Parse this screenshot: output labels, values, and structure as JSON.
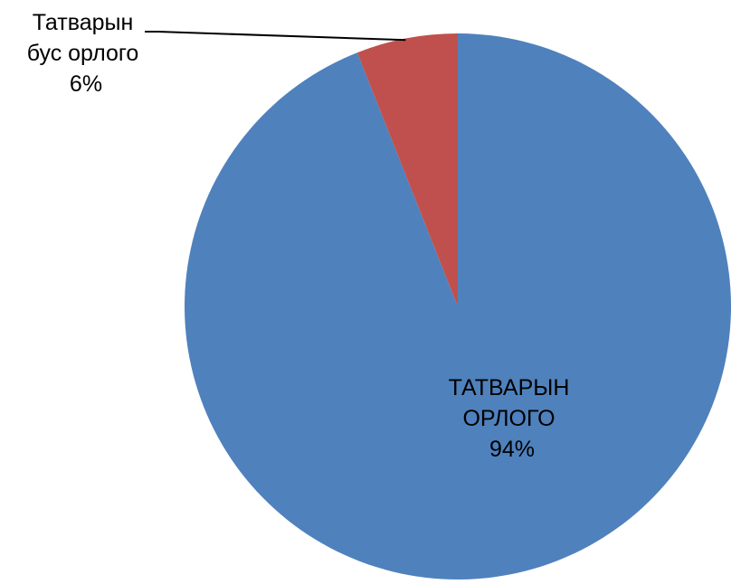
{
  "chart_data": {
    "type": "pie",
    "start_angle_deg": 0,
    "direction": "clockwise",
    "slices": [
      {
        "label_lines": [
          "ТАТВАРЫН",
          "ОРЛОГО"
        ],
        "value": 94,
        "value_label": "94%",
        "color": "#4F81BD",
        "label_position": "inside"
      },
      {
        "label_lines": [
          "Татварын",
          "бус орлого"
        ],
        "value": 6,
        "value_label": "6%",
        "color": "#C0504D",
        "label_position": "outside-top-left"
      }
    ],
    "legend": "none"
  }
}
